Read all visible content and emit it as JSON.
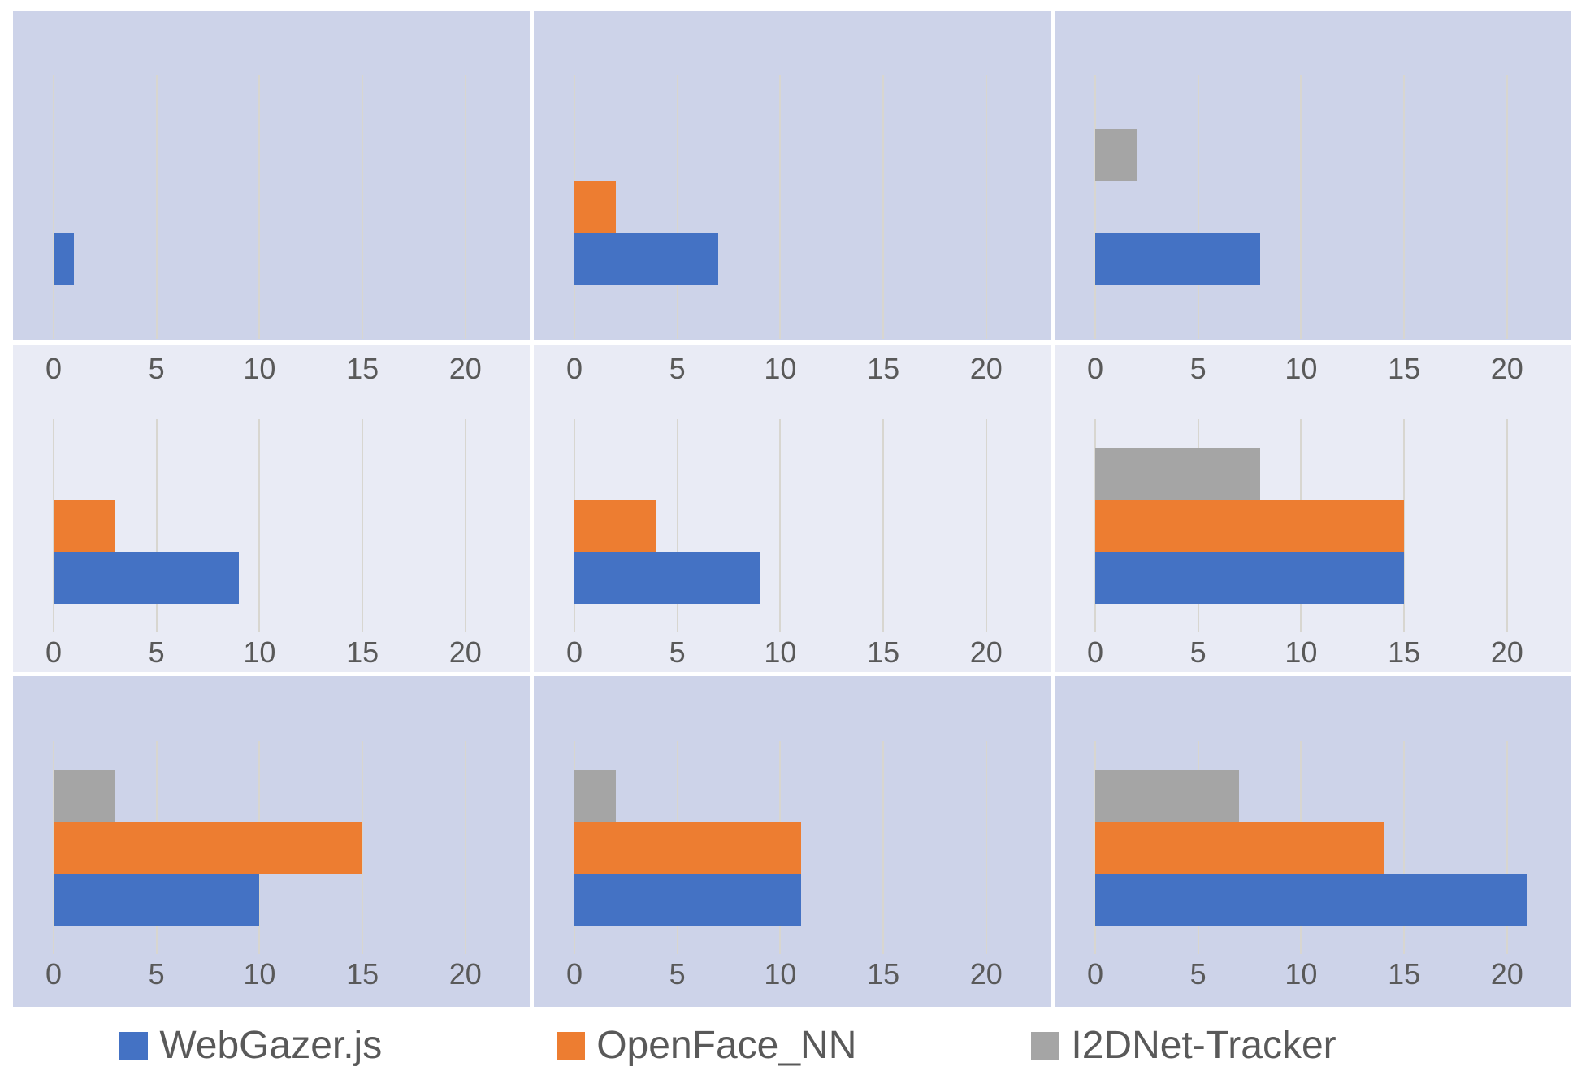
{
  "colors": {
    "blue": "#4472C4",
    "orange": "#ED7D31",
    "gray": "#A5A5A5",
    "panel_dark": "#CDD3E9",
    "panel_light": "#E9EBF5",
    "gridline": "#D8D6D0",
    "text": "#595959",
    "page_background": "#FFFFFF"
  },
  "axis": {
    "tick_labels": [
      "0",
      "5",
      "10",
      "15",
      "20"
    ]
  },
  "legend": {
    "items": [
      {
        "label": "WebGazer.js",
        "color": "#4472C4"
      },
      {
        "label": "OpenFace_NN",
        "color": "#ED7D31"
      },
      {
        "label": "I2DNet-Tracker",
        "color": "#A5A5A5"
      }
    ]
  },
  "chart_data": {
    "type": "bar",
    "orientation": "horizontal",
    "grid": {
      "rows": 3,
      "cols": 3
    },
    "series_names": [
      "WebGazer.js",
      "OpenFace_NN",
      "I2DNet-Tracker"
    ],
    "series_colors": {
      "WebGazer.js": "#4472C4",
      "OpenFace_NN": "#ED7D31",
      "I2DNet-Tracker": "#A5A5A5"
    },
    "draw_order_top_to_bottom": [
      "I2DNet-Tracker",
      "OpenFace_NN",
      "WebGazer.js"
    ],
    "x_ticks": [
      0,
      5,
      10,
      15,
      20
    ],
    "xlim": [
      0,
      23
    ],
    "gridlines": "vertical-at-ticks",
    "legend_position": "bottom",
    "charts": [
      {
        "row": 0,
        "col": 0,
        "values": {
          "WebGazer.js": 1,
          "OpenFace_NN": 0,
          "I2DNet-Tracker": 0
        }
      },
      {
        "row": 0,
        "col": 1,
        "values": {
          "WebGazer.js": 7,
          "OpenFace_NN": 2,
          "I2DNet-Tracker": 0
        }
      },
      {
        "row": 0,
        "col": 2,
        "values": {
          "WebGazer.js": 8,
          "OpenFace_NN": 0,
          "I2DNet-Tracker": 2
        }
      },
      {
        "row": 1,
        "col": 0,
        "values": {
          "WebGazer.js": 9,
          "OpenFace_NN": 3,
          "I2DNet-Tracker": 0
        }
      },
      {
        "row": 1,
        "col": 1,
        "values": {
          "WebGazer.js": 9,
          "OpenFace_NN": 4,
          "I2DNet-Tracker": 0
        }
      },
      {
        "row": 1,
        "col": 2,
        "values": {
          "WebGazer.js": 15,
          "OpenFace_NN": 15,
          "I2DNet-Tracker": 8
        }
      },
      {
        "row": 2,
        "col": 0,
        "values": {
          "WebGazer.js": 10,
          "OpenFace_NN": 15,
          "I2DNet-Tracker": 3
        }
      },
      {
        "row": 2,
        "col": 1,
        "values": {
          "WebGazer.js": 11,
          "OpenFace_NN": 11,
          "I2DNet-Tracker": 2
        }
      },
      {
        "row": 2,
        "col": 2,
        "values": {
          "WebGazer.js": 21,
          "OpenFace_NN": 14,
          "I2DNet-Tracker": 7
        }
      }
    ]
  }
}
